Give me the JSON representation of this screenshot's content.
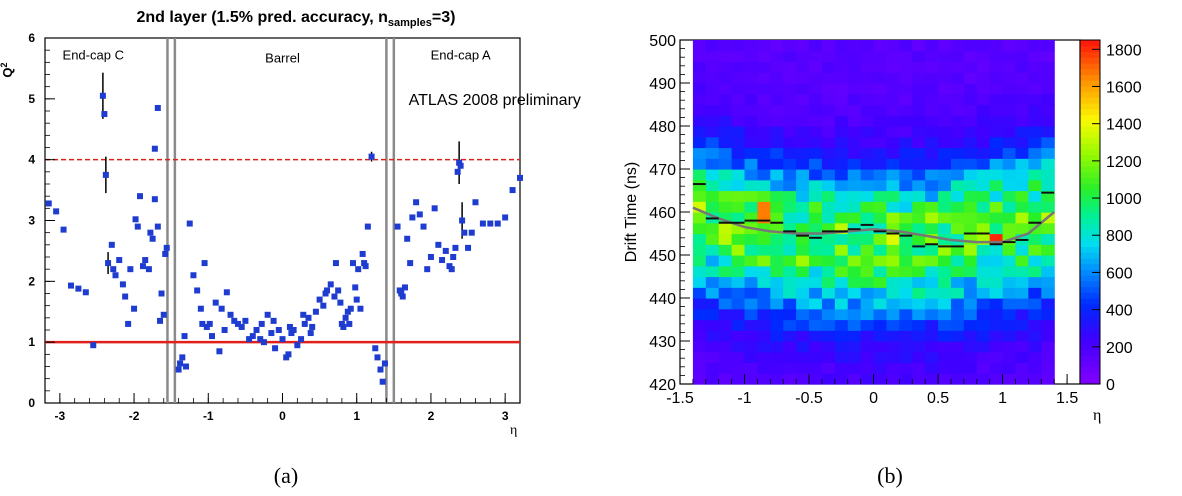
{
  "chart_data": [
    {
      "type": "scatter",
      "panel_label": "(a)",
      "title": "2nd layer (1.5% pred. accuracy, n",
      "title_subscript": "samples",
      "title_suffix": "=3)",
      "xlabel": "η",
      "ylabel": "Q",
      "ylabel_sup": "2",
      "xlim": [
        -3.2,
        3.2
      ],
      "ylim": [
        0,
        6
      ],
      "x_ticks": [
        -3,
        -2,
        -1,
        0,
        1,
        2,
        3
      ],
      "y_ticks": [
        0,
        1,
        2,
        3,
        4,
        5,
        6
      ],
      "region_labels": [
        {
          "text": "End-cap C",
          "x": -2.55,
          "y": 5.65
        },
        {
          "text": "Barrel",
          "x": 0.0,
          "y": 5.6
        },
        {
          "text": "End-cap A",
          "x": 2.4,
          "y": 5.65
        }
      ],
      "annotation": {
        "text": "ATLAS 2008 preliminary",
        "x": 1.7,
        "y": 4.9
      },
      "boundaries": [
        -1.55,
        -1.45,
        1.4,
        1.5
      ],
      "reference_lines": [
        {
          "y": 4,
          "style": "dashed",
          "color": "#e0201b"
        },
        {
          "y": 1,
          "style": "solid",
          "color": "#e0201b"
        }
      ],
      "colors": {
        "points": "#1e3ccf",
        "reference": "#e0201b",
        "boundary": "#8a8a8a"
      },
      "points": [
        [
          -3.15,
          3.28
        ],
        [
          -3.05,
          3.15
        ],
        [
          -2.95,
          2.85
        ],
        [
          -2.85,
          1.93
        ],
        [
          -2.75,
          1.88
        ],
        [
          -2.65,
          1.82
        ],
        [
          -2.55,
          0.95
        ],
        [
          -2.42,
          5.05
        ],
        [
          -2.4,
          4.75
        ],
        [
          -2.38,
          3.75
        ],
        [
          -2.35,
          2.3
        ],
        [
          -2.3,
          2.6
        ],
        [
          -2.28,
          2.2
        ],
        [
          -2.25,
          2.1
        ],
        [
          -2.2,
          2.35
        ],
        [
          -2.15,
          1.95
        ],
        [
          -2.12,
          1.75
        ],
        [
          -2.08,
          1.3
        ],
        [
          -2.05,
          2.2
        ],
        [
          -2.0,
          1.55
        ],
        [
          -1.98,
          3.02
        ],
        [
          -1.95,
          2.9
        ],
        [
          -1.92,
          3.4
        ],
        [
          -1.88,
          2.25
        ],
        [
          -1.85,
          2.35
        ],
        [
          -1.8,
          2.2
        ],
        [
          -1.78,
          2.8
        ],
        [
          -1.75,
          2.7
        ],
        [
          -1.72,
          3.35
        ],
        [
          -1.68,
          2.9
        ],
        [
          -1.65,
          1.35
        ],
        [
          -1.63,
          1.8
        ],
        [
          -1.6,
          1.45
        ],
        [
          -1.58,
          2.45
        ],
        [
          -1.56,
          2.55
        ],
        [
          -1.68,
          4.85
        ],
        [
          -1.72,
          4.18
        ],
        [
          -1.4,
          0.55
        ],
        [
          -1.38,
          0.65
        ],
        [
          -1.35,
          0.75
        ],
        [
          -1.32,
          1.1
        ],
        [
          -1.3,
          0.6
        ],
        [
          -1.25,
          2.95
        ],
        [
          -1.2,
          2.1
        ],
        [
          -1.15,
          1.85
        ],
        [
          -1.1,
          1.55
        ],
        [
          -1.08,
          1.3
        ],
        [
          -1.05,
          2.3
        ],
        [
          -1.02,
          1.25
        ],
        [
          -0.98,
          1.3
        ],
        [
          -0.95,
          1.1
        ],
        [
          -0.9,
          1.65
        ],
        [
          -0.85,
          0.85
        ],
        [
          -0.82,
          1.55
        ],
        [
          -0.78,
          1.2
        ],
        [
          -0.75,
          1.82
        ],
        [
          -0.7,
          1.45
        ],
        [
          -0.65,
          1.35
        ],
        [
          -0.6,
          1.3
        ],
        [
          -0.55,
          1.25
        ],
        [
          -0.5,
          1.35
        ],
        [
          -0.45,
          1.05
        ],
        [
          -0.4,
          1.1
        ],
        [
          -0.35,
          1.2
        ],
        [
          -0.3,
          1.05
        ],
        [
          -0.28,
          1.3
        ],
        [
          -0.25,
          1.0
        ],
        [
          -0.2,
          1.45
        ],
        [
          -0.15,
          1.15
        ],
        [
          -0.12,
          1.35
        ],
        [
          -0.1,
          0.9
        ],
        [
          -0.05,
          1.2
        ],
        [
          0.0,
          1.05
        ],
        [
          0.05,
          0.75
        ],
        [
          0.08,
          0.8
        ],
        [
          0.1,
          1.25
        ],
        [
          0.12,
          1.15
        ],
        [
          0.15,
          1.2
        ],
        [
          0.2,
          0.95
        ],
        [
          0.25,
          1.05
        ],
        [
          0.28,
          1.45
        ],
        [
          0.3,
          1.3
        ],
        [
          0.35,
          1.4
        ],
        [
          0.38,
          1.15
        ],
        [
          0.4,
          1.25
        ],
        [
          0.45,
          1.5
        ],
        [
          0.5,
          1.7
        ],
        [
          0.55,
          1.6
        ],
        [
          0.58,
          1.8
        ],
        [
          0.6,
          1.85
        ],
        [
          0.65,
          1.95
        ],
        [
          0.7,
          1.75
        ],
        [
          0.72,
          2.3
        ],
        [
          0.75,
          1.85
        ],
        [
          0.78,
          1.65
        ],
        [
          0.8,
          1.3
        ],
        [
          0.82,
          1.25
        ],
        [
          0.85,
          1.4
        ],
        [
          0.88,
          1.5
        ],
        [
          0.9,
          1.3
        ],
        [
          0.92,
          1.55
        ],
        [
          0.95,
          2.3
        ],
        [
          0.98,
          1.9
        ],
        [
          1.0,
          1.7
        ],
        [
          1.02,
          2.2
        ],
        [
          1.05,
          1.55
        ],
        [
          1.08,
          2.45
        ],
        [
          1.1,
          2.3
        ],
        [
          1.12,
          2.25
        ],
        [
          1.15,
          2.9
        ],
        [
          1.2,
          4.05
        ],
        [
          1.25,
          0.9
        ],
        [
          1.28,
          0.75
        ],
        [
          1.32,
          0.55
        ],
        [
          1.35,
          0.35
        ],
        [
          1.38,
          0.65
        ],
        [
          1.55,
          2.9
        ],
        [
          1.58,
          1.85
        ],
        [
          1.6,
          1.8
        ],
        [
          1.62,
          1.75
        ],
        [
          1.65,
          1.9
        ],
        [
          1.68,
          2.7
        ],
        [
          1.72,
          2.3
        ],
        [
          1.75,
          3.05
        ],
        [
          1.8,
          3.3
        ],
        [
          1.85,
          3.1
        ],
        [
          1.9,
          2.9
        ],
        [
          1.95,
          2.2
        ],
        [
          2.0,
          2.4
        ],
        [
          2.05,
          3.2
        ],
        [
          2.1,
          2.6
        ],
        [
          2.15,
          2.35
        ],
        [
          2.2,
          2.5
        ],
        [
          2.25,
          2.25
        ],
        [
          2.28,
          2.2
        ],
        [
          2.3,
          2.4
        ],
        [
          2.33,
          2.55
        ],
        [
          2.36,
          3.8
        ],
        [
          2.38,
          3.95
        ],
        [
          2.4,
          3.9
        ],
        [
          2.42,
          3.0
        ],
        [
          2.45,
          2.8
        ],
        [
          2.5,
          2.55
        ],
        [
          2.55,
          2.8
        ],
        [
          2.6,
          3.3
        ],
        [
          2.7,
          2.95
        ],
        [
          2.8,
          2.95
        ],
        [
          2.9,
          2.95
        ],
        [
          3.0,
          3.05
        ],
        [
          3.1,
          3.5
        ],
        [
          3.2,
          3.7
        ]
      ],
      "error_bars": [
        [
          -2.42,
          5.05,
          0.38
        ],
        [
          -2.38,
          3.75,
          0.3
        ],
        [
          2.38,
          3.95,
          0.35
        ],
        [
          2.42,
          3.0,
          0.3
        ],
        [
          -2.35,
          2.3,
          0.18
        ],
        [
          1.2,
          4.05,
          0.08
        ]
      ]
    },
    {
      "type": "heatmap",
      "panel_label": "(b)",
      "xlabel": "η",
      "ylabel": "Drift Time (ns)",
      "xlim": [
        -1.5,
        1.6
      ],
      "ylim": [
        420,
        500
      ],
      "x_ticks": [
        -1.5,
        -1,
        -0.5,
        0,
        0.5,
        1,
        1.5
      ],
      "y_ticks": [
        420,
        430,
        440,
        450,
        460,
        470,
        480,
        490,
        500
      ],
      "colorbar_ticks": [
        0,
        200,
        400,
        600,
        800,
        1000,
        1200,
        1400,
        1600,
        1800
      ],
      "z_range": [
        0,
        1850
      ],
      "x_bins": {
        "start": -1.4,
        "end": 1.4,
        "count": 28
      },
      "y_bins": {
        "start": 420,
        "end": 500,
        "count": 32
      },
      "profile_points": [
        [
          -1.35,
          466.5
        ],
        [
          -1.25,
          458.5
        ],
        [
          -1.15,
          457.5
        ],
        [
          -1.05,
          457.5
        ],
        [
          -0.95,
          458.0
        ],
        [
          -0.85,
          458.0
        ],
        [
          -0.75,
          457.5
        ],
        [
          -0.65,
          455.5
        ],
        [
          -0.55,
          454.5
        ],
        [
          -0.45,
          454.0
        ],
        [
          -0.35,
          455.5
        ],
        [
          -0.25,
          455.5
        ],
        [
          -0.15,
          456.0
        ],
        [
          -0.05,
          457.0
        ],
        [
          0.05,
          455.5
        ],
        [
          0.15,
          455.0
        ],
        [
          0.25,
          454.5
        ],
        [
          0.35,
          452.0
        ],
        [
          0.45,
          452.5
        ],
        [
          0.55,
          452.0
        ],
        [
          0.65,
          452.0
        ],
        [
          0.75,
          455.0
        ],
        [
          0.85,
          455.0
        ],
        [
          0.95,
          452.5
        ],
        [
          1.05,
          453.0
        ],
        [
          1.15,
          453.5
        ],
        [
          1.25,
          457.5
        ],
        [
          1.35,
          464.5
        ]
      ],
      "fit_curve": [
        [
          -1.4,
          461
        ],
        [
          -1.2,
          458.5
        ],
        [
          -1.0,
          456.5
        ],
        [
          -0.8,
          455.5
        ],
        [
          -0.6,
          455
        ],
        [
          -0.4,
          455
        ],
        [
          -0.2,
          455.5
        ],
        [
          0,
          456
        ],
        [
          0.2,
          455.5
        ],
        [
          0.4,
          454.5
        ],
        [
          0.6,
          453.5
        ],
        [
          0.8,
          453
        ],
        [
          1.0,
          453
        ],
        [
          1.2,
          455
        ],
        [
          1.4,
          460
        ]
      ],
      "colors": {
        "profile": "#111111",
        "fit": "#777777"
      }
    }
  ]
}
